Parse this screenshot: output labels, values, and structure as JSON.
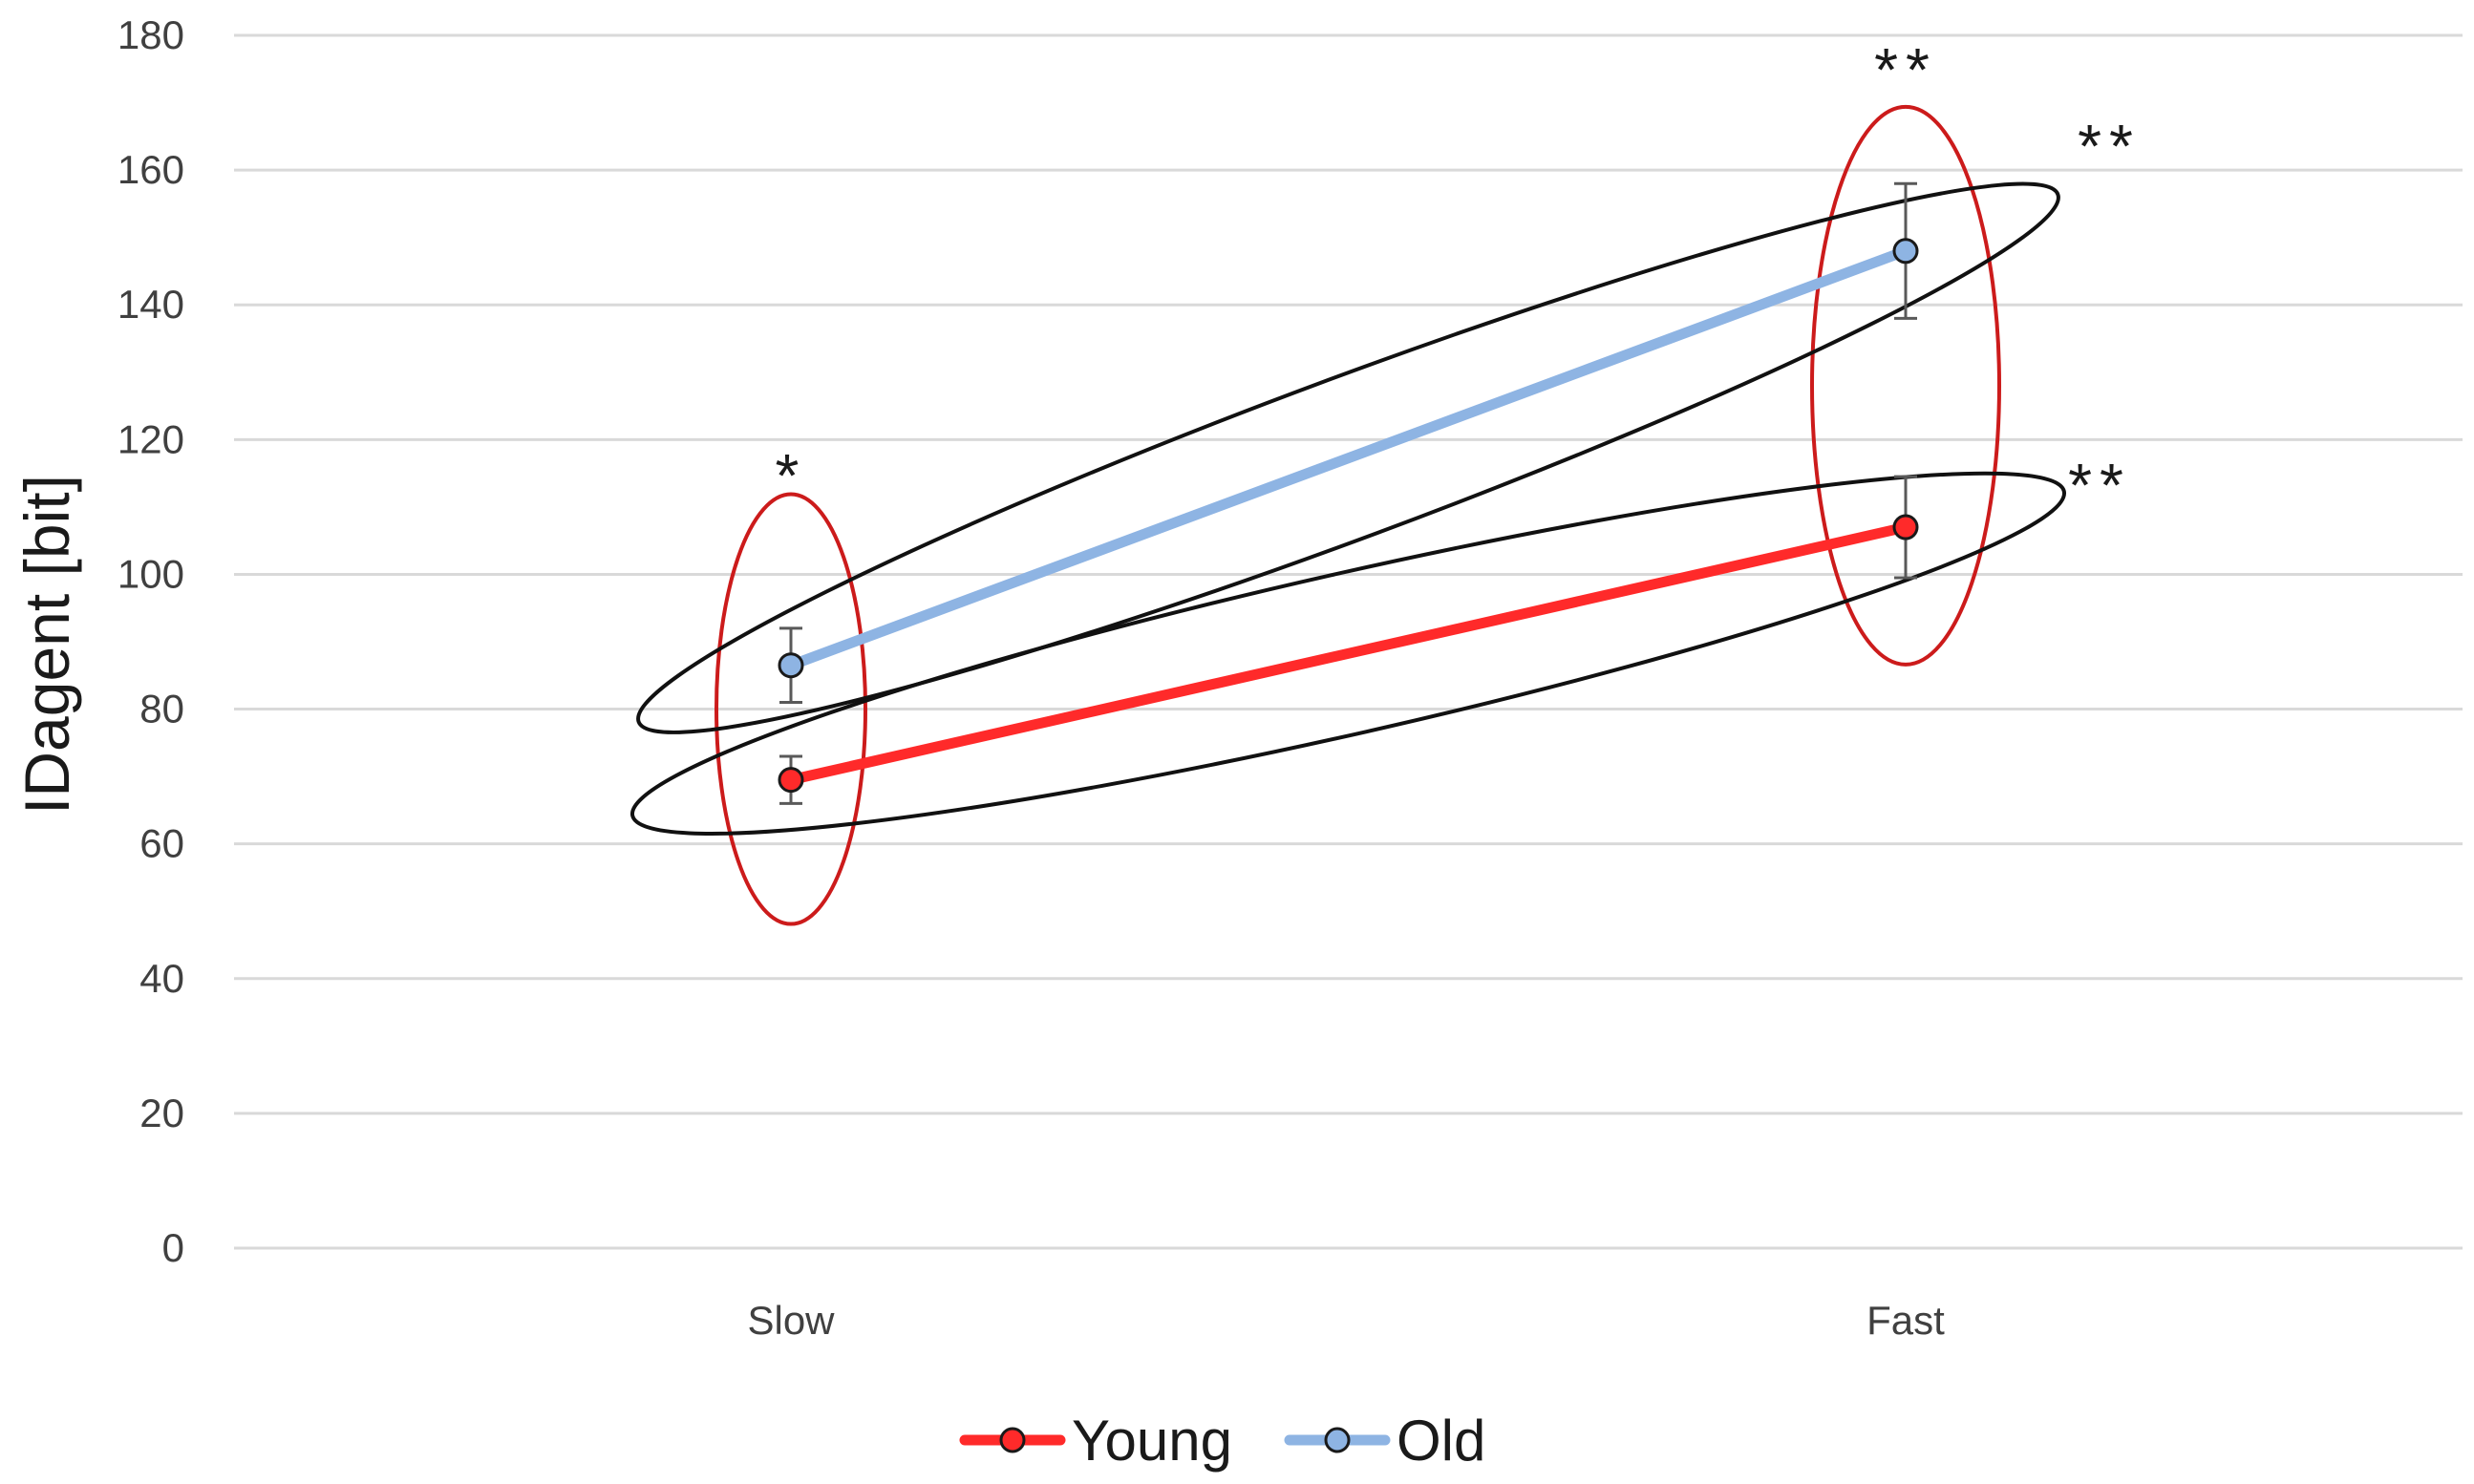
{
  "chart_data": {
    "type": "line",
    "title": "",
    "xlabel": "",
    "ylabel": "IDagent [bit]",
    "categories": [
      "Slow",
      "Fast"
    ],
    "ylim": [
      0,
      180
    ],
    "yticks": [
      0,
      20,
      40,
      60,
      80,
      100,
      120,
      140,
      160,
      180
    ],
    "grid": true,
    "legend_position": "bottom",
    "series": [
      {
        "name": "Young",
        "values": [
          69.5,
          107
        ],
        "error": [
          3.5,
          7.5
        ],
        "color": "#ff2a2a",
        "marker_color": "#ff2a2a"
      },
      {
        "name": "Old",
        "values": [
          86.5,
          148
        ],
        "error": [
          5.5,
          10
        ],
        "color": "#8eb4e3",
        "marker_color": "#8eb4e3"
      }
    ],
    "annotations": {
      "within_category": [
        {
          "category": "Slow",
          "label": "*",
          "color": "#cc1b1b"
        },
        {
          "category": "Fast",
          "label": "**",
          "color": "#cc1b1b"
        }
      ],
      "within_series": [
        {
          "series": "Old",
          "label": "**",
          "color": "#111111"
        },
        {
          "series": "Young",
          "label": "**",
          "color": "#111111"
        }
      ]
    }
  }
}
